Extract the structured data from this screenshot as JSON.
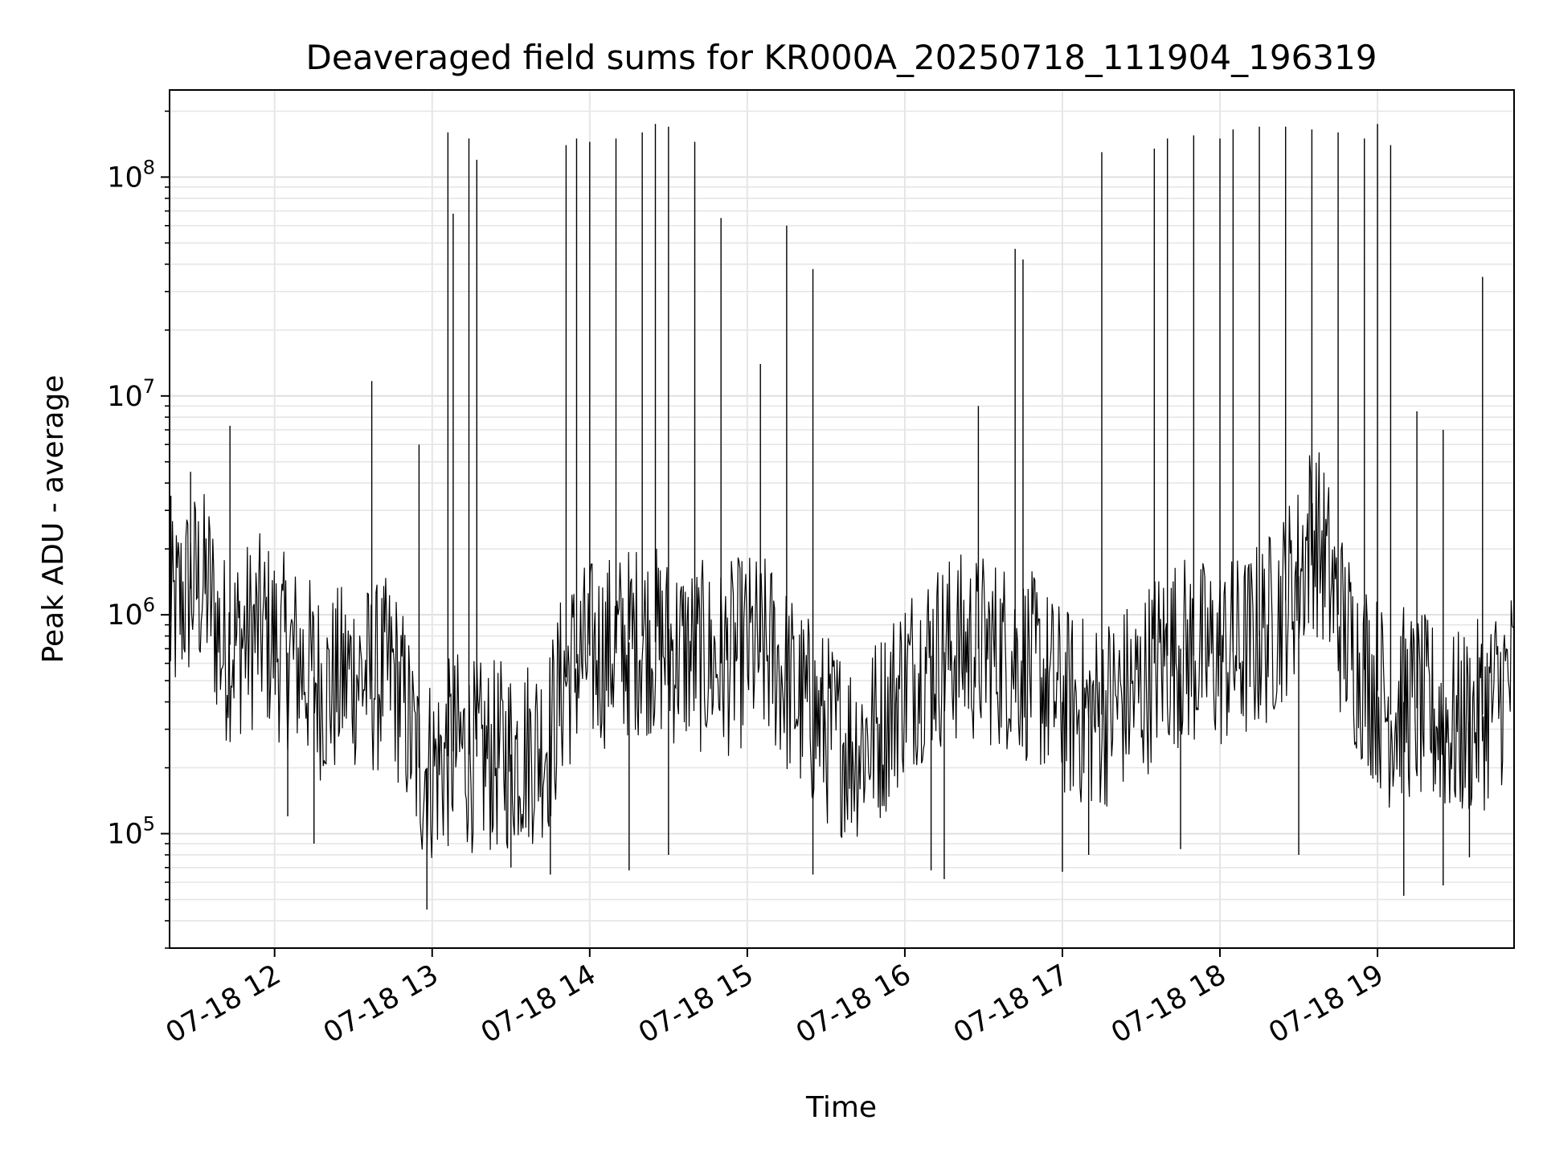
{
  "chart_data": {
    "type": "line",
    "title": "Deaveraged field sums for KR000A_20250718_111904_196319",
    "xlabel": "Time",
    "ylabel": "Peak ADU - average",
    "y_scale": "log",
    "grid": true,
    "legend": "none",
    "xlim": [
      "2025-07-18T11:20:00",
      "2025-07-18T19:52:00"
    ],
    "ylim": [
      30000,
      250000000
    ],
    "x_ticks": [
      {
        "value": "2025-07-18T12:00:00",
        "label": "07-18 12"
      },
      {
        "value": "2025-07-18T13:00:00",
        "label": "07-18 13"
      },
      {
        "value": "2025-07-18T14:00:00",
        "label": "07-18 14"
      },
      {
        "value": "2025-07-18T15:00:00",
        "label": "07-18 15"
      },
      {
        "value": "2025-07-18T16:00:00",
        "label": "07-18 16"
      },
      {
        "value": "2025-07-18T17:00:00",
        "label": "07-18 17"
      },
      {
        "value": "2025-07-18T18:00:00",
        "label": "07-18 18"
      },
      {
        "value": "2025-07-18T19:00:00",
        "label": "07-18 19"
      }
    ],
    "y_ticks": [
      {
        "value": 100000,
        "base": "10",
        "exp": "5"
      },
      {
        "value": 1000000,
        "base": "10",
        "exp": "6"
      },
      {
        "value": 10000000,
        "base": "10",
        "exp": "7"
      },
      {
        "value": 100000000,
        "base": "10",
        "exp": "8"
      }
    ],
    "series_color": "#000000",
    "series": [
      {
        "x": [
          "2025-07-18T11:20:00",
          "2025-07-18T11:25:00",
          "2025-07-18T11:30:00",
          "2025-07-18T11:35:00",
          "2025-07-18T11:40:00",
          "2025-07-18T11:45:00",
          "2025-07-18T11:50:00",
          "2025-07-18T11:55:00",
          "2025-07-18T12:00:00",
          "2025-07-18T12:10:00",
          "2025-07-18T12:20:00",
          "2025-07-18T12:30:00",
          "2025-07-18T12:37:00",
          "2025-07-18T12:45:00",
          "2025-07-18T12:50:00",
          "2025-07-18T12:55:00",
          "2025-07-18T13:00:00",
          "2025-07-18T13:05:00",
          "2025-07-18T13:10:00",
          "2025-07-18T13:14:00",
          "2025-07-18T13:20:00",
          "2025-07-18T13:30:00",
          "2025-07-18T13:40:00",
          "2025-07-18T13:45:00",
          "2025-07-18T13:50:00",
          "2025-07-18T13:55:00",
          "2025-07-18T14:00:00",
          "2025-07-18T14:10:00",
          "2025-07-18T14:20:00",
          "2025-07-18T14:25:00",
          "2025-07-18T14:30:00",
          "2025-07-18T14:40:00",
          "2025-07-18T14:50:00",
          "2025-07-18T15:00:00",
          "2025-07-18T15:10:00",
          "2025-07-18T15:15:00",
          "2025-07-18T15:20:00",
          "2025-07-18T15:30:00",
          "2025-07-18T15:40:00",
          "2025-07-18T15:50:00",
          "2025-07-18T16:00:00",
          "2025-07-18T16:10:00",
          "2025-07-18T16:20:00",
          "2025-07-18T16:30:00",
          "2025-07-18T16:40:00",
          "2025-07-18T16:45:00",
          "2025-07-18T16:50:00",
          "2025-07-18T17:00:00",
          "2025-07-18T17:10:00",
          "2025-07-18T17:15:00",
          "2025-07-18T17:20:00",
          "2025-07-18T17:30:00",
          "2025-07-18T17:35:00",
          "2025-07-18T17:40:00",
          "2025-07-18T17:45:00",
          "2025-07-18T17:50:00",
          "2025-07-18T18:00:00",
          "2025-07-18T18:10:00",
          "2025-07-18T18:15:00",
          "2025-07-18T18:20:00",
          "2025-07-18T18:30:00",
          "2025-07-18T18:35:00",
          "2025-07-18T18:40:00",
          "2025-07-18T18:45:00",
          "2025-07-18T18:50:00",
          "2025-07-18T19:00:00",
          "2025-07-18T19:05:00",
          "2025-07-18T19:10:00",
          "2025-07-18T19:20:00",
          "2025-07-18T19:30:00",
          "2025-07-18T19:40:00",
          "2025-07-18T19:50:00"
        ],
        "y": [
          900000,
          1200000,
          1400000,
          1300000,
          700000,
          750000,
          800000,
          850000,
          750000,
          600000,
          450000,
          550000,
          500000,
          550000,
          350000,
          200000,
          200000,
          220000,
          250000,
          230000,
          220000,
          230000,
          250000,
          280000,
          500000,
          600000,
          650000,
          700000,
          800000,
          750000,
          700000,
          650000,
          600000,
          700000,
          650000,
          500000,
          400000,
          300000,
          250000,
          300000,
          500000,
          650000,
          700000,
          700000,
          650000,
          600000,
          550000,
          400000,
          350000,
          350000,
          400000,
          450000,
          600000,
          650000,
          700000,
          650000,
          650000,
          700000,
          800000,
          900000,
          1500000,
          2500000,
          1800000,
          1000000,
          700000,
          450000,
          350000,
          400000,
          350000,
          300000,
          350000,
          500000
        ],
        "peaks": [
          {
            "x": "2025-07-18T11:20:30",
            "y": 3500000
          },
          {
            "x": "2025-07-18T11:28:00",
            "y": 4500000
          },
          {
            "x": "2025-07-18T11:43:00",
            "y": 7300000
          },
          {
            "x": "2025-07-18T12:37:00",
            "y": 11700000
          },
          {
            "x": "2025-07-18T12:55:00",
            "y": 6000000
          },
          {
            "x": "2025-07-18T13:06:00",
            "y": 160000000
          },
          {
            "x": "2025-07-18T13:08:00",
            "y": 68000000
          },
          {
            "x": "2025-07-18T13:14:00",
            "y": 150000000
          },
          {
            "x": "2025-07-18T13:17:00",
            "y": 120000000
          },
          {
            "x": "2025-07-18T13:51:00",
            "y": 140000000
          },
          {
            "x": "2025-07-18T13:55:00",
            "y": 150000000
          },
          {
            "x": "2025-07-18T14:00:00",
            "y": 145000000
          },
          {
            "x": "2025-07-18T14:10:00",
            "y": 150000000
          },
          {
            "x": "2025-07-18T14:20:00",
            "y": 160000000
          },
          {
            "x": "2025-07-18T14:25:00",
            "y": 175000000
          },
          {
            "x": "2025-07-18T14:30:00",
            "y": 170000000
          },
          {
            "x": "2025-07-18T14:40:00",
            "y": 145000000
          },
          {
            "x": "2025-07-18T14:50:00",
            "y": 65000000
          },
          {
            "x": "2025-07-18T15:05:00",
            "y": 14000000
          },
          {
            "x": "2025-07-18T15:15:00",
            "y": 60000000
          },
          {
            "x": "2025-07-18T15:25:00",
            "y": 38000000
          },
          {
            "x": "2025-07-18T16:28:00",
            "y": 9000000
          },
          {
            "x": "2025-07-18T16:42:00",
            "y": 47000000
          },
          {
            "x": "2025-07-18T16:45:00",
            "y": 42000000
          },
          {
            "x": "2025-07-18T17:15:00",
            "y": 130000000
          },
          {
            "x": "2025-07-18T17:35:00",
            "y": 135000000
          },
          {
            "x": "2025-07-18T17:40:00",
            "y": 150000000
          },
          {
            "x": "2025-07-18T17:50:00",
            "y": 155000000
          },
          {
            "x": "2025-07-18T18:00:00",
            "y": 150000000
          },
          {
            "x": "2025-07-18T18:05:00",
            "y": 165000000
          },
          {
            "x": "2025-07-18T18:15:00",
            "y": 170000000
          },
          {
            "x": "2025-07-18T18:25:00",
            "y": 170000000
          },
          {
            "x": "2025-07-18T18:35:00",
            "y": 165000000
          },
          {
            "x": "2025-07-18T18:45:00",
            "y": 160000000
          },
          {
            "x": "2025-07-18T18:55:00",
            "y": 150000000
          },
          {
            "x": "2025-07-18T19:00:00",
            "y": 175000000
          },
          {
            "x": "2025-07-18T19:05:00",
            "y": 140000000
          },
          {
            "x": "2025-07-18T19:15:00",
            "y": 8500000
          },
          {
            "x": "2025-07-18T19:25:00",
            "y": 7000000
          },
          {
            "x": "2025-07-18T19:40:00",
            "y": 35000000
          }
        ],
        "troughs": [
          {
            "x": "2025-07-18T12:05:00",
            "y": 120000
          },
          {
            "x": "2025-07-18T12:15:00",
            "y": 90000
          },
          {
            "x": "2025-07-18T12:58:00",
            "y": 45000
          },
          {
            "x": "2025-07-18T13:30:00",
            "y": 70000
          },
          {
            "x": "2025-07-18T13:45:00",
            "y": 65000
          },
          {
            "x": "2025-07-18T14:15:00",
            "y": 68000
          },
          {
            "x": "2025-07-18T14:30:00",
            "y": 80000
          },
          {
            "x": "2025-07-18T15:25:00",
            "y": 65000
          },
          {
            "x": "2025-07-18T16:10:00",
            "y": 68000
          },
          {
            "x": "2025-07-18T16:15:00",
            "y": 62000
          },
          {
            "x": "2025-07-18T17:00:00",
            "y": 67000
          },
          {
            "x": "2025-07-18T17:10:00",
            "y": 80000
          },
          {
            "x": "2025-07-18T17:45:00",
            "y": 85000
          },
          {
            "x": "2025-07-18T18:30:00",
            "y": 80000
          },
          {
            "x": "2025-07-18T19:10:00",
            "y": 52000
          },
          {
            "x": "2025-07-18T19:25:00",
            "y": 58000
          },
          {
            "x": "2025-07-18T19:35:00",
            "y": 78000
          }
        ]
      }
    ]
  }
}
